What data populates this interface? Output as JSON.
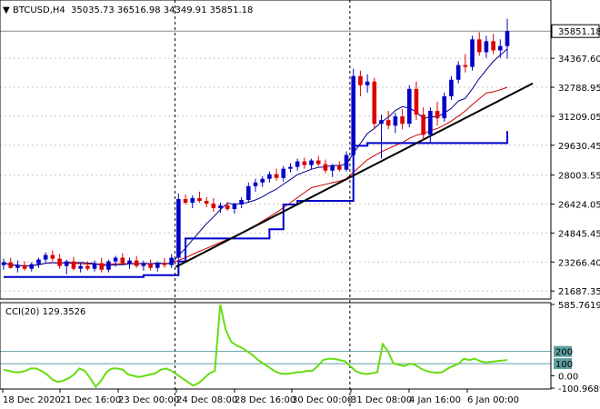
{
  "header": {
    "symbol": "BTCUSD,H4",
    "ohlc": "35035.73 36516.98 34349.91 35851.18"
  },
  "colors": {
    "up_candle": "#0000c8",
    "down_candle": "#dc0000",
    "fast_ma": "#00008b",
    "slow_ma": "#cc0000",
    "stop_line": "#0000cc",
    "trendline": "#000000",
    "cci_line": "#66dd11",
    "cci_level": "#5f9ea0",
    "grid": "#c8c8c8",
    "current_price_box": "#ffffff"
  },
  "chart_data": [
    {
      "type": "candlestick",
      "title": "BTCUSD,H4",
      "ylim": [
        21300,
        37000
      ],
      "y_ticks": [
        "35851.18",
        "34367.60",
        "32788.95",
        "31209.05",
        "29630.45",
        "28003.55",
        "26424.05",
        "24845.45",
        "23266.40",
        "21687.35"
      ],
      "y_tick_values": [
        35851.18,
        34367.6,
        32788.95,
        31209.05,
        29630.45,
        28003.55,
        26424.05,
        24845.45,
        23266.4,
        21687.35
      ],
      "current_price": 35851.18,
      "x_labels": [
        "18 Dec 2020",
        "21 Dec 16:00",
        "23 Dec 00:00",
        "24 Dec 08:00",
        "28 Dec 16:00",
        "30 Dec 00:00",
        "31 Dec 08:00",
        "4 Jan 16:00",
        "6 Jan 00:00"
      ],
      "session_markers": [
        "24 Dec 08:00",
        "31 Dec 08:00"
      ],
      "candles": [
        {
          "o": 23100,
          "h": 23450,
          "l": 22850,
          "c": 23250
        },
        {
          "o": 23250,
          "h": 23500,
          "l": 22900,
          "c": 22950
        },
        {
          "o": 22950,
          "h": 23350,
          "l": 22700,
          "c": 23100
        },
        {
          "o": 23100,
          "h": 23300,
          "l": 22800,
          "c": 22900
        },
        {
          "o": 22900,
          "h": 23250,
          "l": 22750,
          "c": 23150
        },
        {
          "o": 23150,
          "h": 23500,
          "l": 22950,
          "c": 23400
        },
        {
          "o": 23400,
          "h": 23800,
          "l": 23250,
          "c": 23650
        },
        {
          "o": 23650,
          "h": 23900,
          "l": 23300,
          "c": 23450
        },
        {
          "o": 23450,
          "h": 23700,
          "l": 22900,
          "c": 23050
        },
        {
          "o": 23050,
          "h": 23400,
          "l": 22600,
          "c": 23300
        },
        {
          "o": 23300,
          "h": 23550,
          "l": 22800,
          "c": 22900
        },
        {
          "o": 22900,
          "h": 23200,
          "l": 22700,
          "c": 23050
        },
        {
          "o": 23050,
          "h": 23300,
          "l": 22800,
          "c": 22900
        },
        {
          "o": 22900,
          "h": 23350,
          "l": 22750,
          "c": 23200
        },
        {
          "o": 23200,
          "h": 23500,
          "l": 22700,
          "c": 22850
        },
        {
          "o": 22850,
          "h": 23400,
          "l": 22700,
          "c": 23300
        },
        {
          "o": 23300,
          "h": 23600,
          "l": 23000,
          "c": 23500
        },
        {
          "o": 23500,
          "h": 23750,
          "l": 23100,
          "c": 23200
        },
        {
          "o": 23200,
          "h": 23500,
          "l": 22900,
          "c": 23350
        },
        {
          "o": 23350,
          "h": 23600,
          "l": 22950,
          "c": 23050
        },
        {
          "o": 23050,
          "h": 23350,
          "l": 22800,
          "c": 23150
        },
        {
          "o": 23150,
          "h": 23400,
          "l": 22800,
          "c": 22950
        },
        {
          "o": 22950,
          "h": 23300,
          "l": 22750,
          "c": 23200
        },
        {
          "o": 23200,
          "h": 23500,
          "l": 22950,
          "c": 23100
        },
        {
          "o": 23100,
          "h": 23700,
          "l": 22950,
          "c": 23500
        },
        {
          "o": 23500,
          "h": 27000,
          "l": 23400,
          "c": 26700
        },
        {
          "o": 26700,
          "h": 26950,
          "l": 26400,
          "c": 26500
        },
        {
          "o": 26500,
          "h": 26900,
          "l": 26200,
          "c": 26750
        },
        {
          "o": 26750,
          "h": 27100,
          "l": 26500,
          "c": 26600
        },
        {
          "o": 26600,
          "h": 26800,
          "l": 26250,
          "c": 26450
        },
        {
          "o": 26450,
          "h": 26750,
          "l": 26000,
          "c": 26200
        },
        {
          "o": 26200,
          "h": 26500,
          "l": 25950,
          "c": 26350
        },
        {
          "o": 26350,
          "h": 26550,
          "l": 26050,
          "c": 26150
        },
        {
          "o": 26150,
          "h": 26500,
          "l": 25900,
          "c": 26400
        },
        {
          "o": 26400,
          "h": 26800,
          "l": 26200,
          "c": 26650
        },
        {
          "o": 26650,
          "h": 27600,
          "l": 26500,
          "c": 27400
        },
        {
          "o": 27400,
          "h": 27800,
          "l": 27100,
          "c": 27600
        },
        {
          "o": 27600,
          "h": 27950,
          "l": 27350,
          "c": 27800
        },
        {
          "o": 27800,
          "h": 28200,
          "l": 27600,
          "c": 28050
        },
        {
          "o": 28050,
          "h": 28350,
          "l": 27700,
          "c": 27850
        },
        {
          "o": 27850,
          "h": 28500,
          "l": 27650,
          "c": 28350
        },
        {
          "o": 28350,
          "h": 28650,
          "l": 28150,
          "c": 28450
        },
        {
          "o": 28450,
          "h": 28900,
          "l": 28250,
          "c": 28750
        },
        {
          "o": 28750,
          "h": 28950,
          "l": 28350,
          "c": 28550
        },
        {
          "o": 28550,
          "h": 28900,
          "l": 28300,
          "c": 28800
        },
        {
          "o": 28800,
          "h": 29050,
          "l": 28500,
          "c": 28600
        },
        {
          "o": 28600,
          "h": 28850,
          "l": 28100,
          "c": 28250
        },
        {
          "o": 28250,
          "h": 28600,
          "l": 27900,
          "c": 28500
        },
        {
          "o": 28500,
          "h": 28750,
          "l": 28200,
          "c": 28300
        },
        {
          "o": 28300,
          "h": 29300,
          "l": 28200,
          "c": 29100
        },
        {
          "o": 29100,
          "h": 33800,
          "l": 28900,
          "c": 33400
        },
        {
          "o": 33400,
          "h": 33700,
          "l": 32300,
          "c": 32900
        },
        {
          "o": 32900,
          "h": 33500,
          "l": 32500,
          "c": 33100
        },
        {
          "o": 33100,
          "h": 33300,
          "l": 30500,
          "c": 30800
        },
        {
          "o": 30800,
          "h": 31300,
          "l": 28900,
          "c": 31000
        },
        {
          "o": 31000,
          "h": 31500,
          "l": 30500,
          "c": 30700
        },
        {
          "o": 30700,
          "h": 31400,
          "l": 30300,
          "c": 31200
        },
        {
          "o": 31200,
          "h": 31600,
          "l": 30500,
          "c": 30800
        },
        {
          "o": 30800,
          "h": 32900,
          "l": 30600,
          "c": 32700
        },
        {
          "o": 32700,
          "h": 33100,
          "l": 31000,
          "c": 31300
        },
        {
          "o": 31300,
          "h": 31700,
          "l": 29900,
          "c": 30200
        },
        {
          "o": 30200,
          "h": 31700,
          "l": 29800,
          "c": 31500
        },
        {
          "o": 31500,
          "h": 32000,
          "l": 30700,
          "c": 31100
        },
        {
          "o": 31100,
          "h": 32500,
          "l": 30900,
          "c": 32300
        },
        {
          "o": 32300,
          "h": 33400,
          "l": 32100,
          "c": 33200
        },
        {
          "o": 33200,
          "h": 34200,
          "l": 33000,
          "c": 34000
        },
        {
          "o": 34000,
          "h": 34600,
          "l": 33600,
          "c": 33900
        },
        {
          "o": 33900,
          "h": 35600,
          "l": 33700,
          "c": 35400
        },
        {
          "o": 35400,
          "h": 35800,
          "l": 34500,
          "c": 34700
        },
        {
          "o": 34700,
          "h": 35600,
          "l": 34400,
          "c": 35300
        },
        {
          "o": 35300,
          "h": 35700,
          "l": 34600,
          "c": 34800
        },
        {
          "o": 34800,
          "h": 35400,
          "l": 34400,
          "c": 35035.73
        },
        {
          "o": 35035.73,
          "h": 36516.98,
          "l": 34349.91,
          "c": 35851.18
        }
      ]
    },
    {
      "type": "line",
      "title": "CCI(20) 129.3526",
      "ylim": [
        -100.9689,
        585.7619
      ],
      "y_ticks": [
        "585.7619",
        "0.00",
        "-100.9689"
      ],
      "levels": [
        {
          "label": "200",
          "value": 200
        },
        {
          "label": "100",
          "value": 100
        }
      ],
      "current_value": 129.3526,
      "values": [
        50,
        40,
        30,
        30,
        40,
        60,
        60,
        40,
        10,
        -30,
        -50,
        -40,
        -20,
        10,
        60,
        40,
        -20,
        -90,
        -40,
        30,
        60,
        60,
        50,
        10,
        0,
        -10,
        0,
        10,
        20,
        50,
        60,
        40,
        10,
        -20,
        -50,
        -80,
        -60,
        -20,
        20,
        40,
        585,
        380,
        280,
        250,
        230,
        200,
        170,
        130,
        100,
        70,
        40,
        20,
        15,
        20,
        30,
        30,
        40,
        40,
        80,
        130,
        140,
        140,
        130,
        120,
        80,
        40,
        20,
        15,
        20,
        30,
        260,
        200,
        100,
        90,
        80,
        100,
        90,
        60,
        40,
        30,
        25,
        30,
        60,
        80,
        100,
        140,
        130,
        140,
        120,
        110,
        115,
        120,
        125,
        129.35
      ]
    }
  ]
}
